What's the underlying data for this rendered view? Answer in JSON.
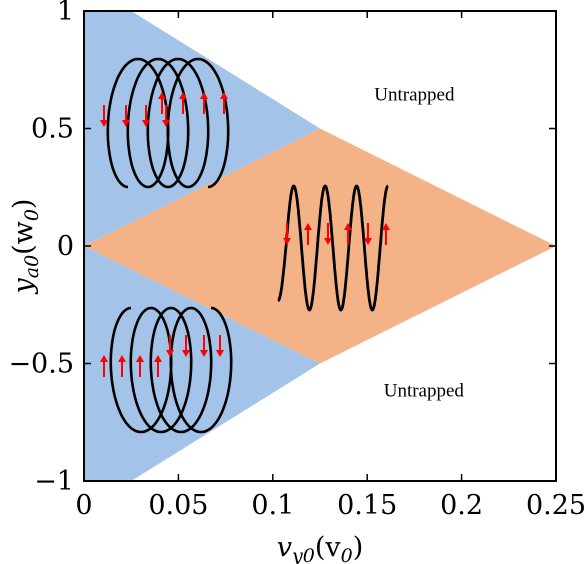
{
  "chart_data": {
    "type": "area",
    "title": "",
    "xlabel": {
      "main": "v",
      "sub": "y0",
      "unit": "(v",
      "unit_sub": "0",
      "close": ")"
    },
    "ylabel": {
      "main": "y",
      "sub": "a0",
      "unit": "(w",
      "unit_sub": "0",
      "close": ")"
    },
    "xlim": [
      0,
      0.25
    ],
    "ylim": [
      -1,
      1
    ],
    "xticks": [
      {
        "value": 0,
        "label": "0"
      },
      {
        "value": 0.05,
        "label": "0.05"
      },
      {
        "value": 0.1,
        "label": "0.1"
      },
      {
        "value": 0.15,
        "label": "0.15"
      },
      {
        "value": 0.2,
        "label": "0.2"
      },
      {
        "value": 0.25,
        "label": "0.25"
      }
    ],
    "yticks": [
      {
        "value": 1,
        "label": "1"
      },
      {
        "value": 0.5,
        "label": "0.5"
      },
      {
        "value": 0,
        "label": "0"
      },
      {
        "value": -0.5,
        "label": "−0.5"
      },
      {
        "value": -1,
        "label": "−1"
      }
    ],
    "regions": [
      {
        "id": "upper-blue",
        "color": "#a3c4e8",
        "points": [
          [
            0,
            1.0
          ],
          [
            0.025,
            1.0
          ],
          [
            0.125,
            0.5
          ],
          [
            0,
            0
          ]
        ]
      },
      {
        "id": "lower-blue",
        "color": "#a3c4e8",
        "points": [
          [
            0,
            0
          ],
          [
            0.125,
            -0.5
          ],
          [
            0.025,
            -1.0
          ],
          [
            0,
            -1.0
          ]
        ]
      },
      {
        "id": "middle-orange",
        "color": "#f4b387",
        "points": [
          [
            0,
            0
          ],
          [
            0.125,
            0.5
          ],
          [
            0.25,
            0
          ],
          [
            0.125,
            -0.5
          ]
        ]
      }
    ],
    "annotations": [
      {
        "text": "Untrapped",
        "x": 0.175,
        "y": 0.62
      },
      {
        "text": "Untrapped",
        "x": 0.18,
        "y": -0.64
      }
    ],
    "colors": {
      "trajectory": "#000000",
      "arrow": "#ff0000",
      "frame": "#000000"
    }
  }
}
